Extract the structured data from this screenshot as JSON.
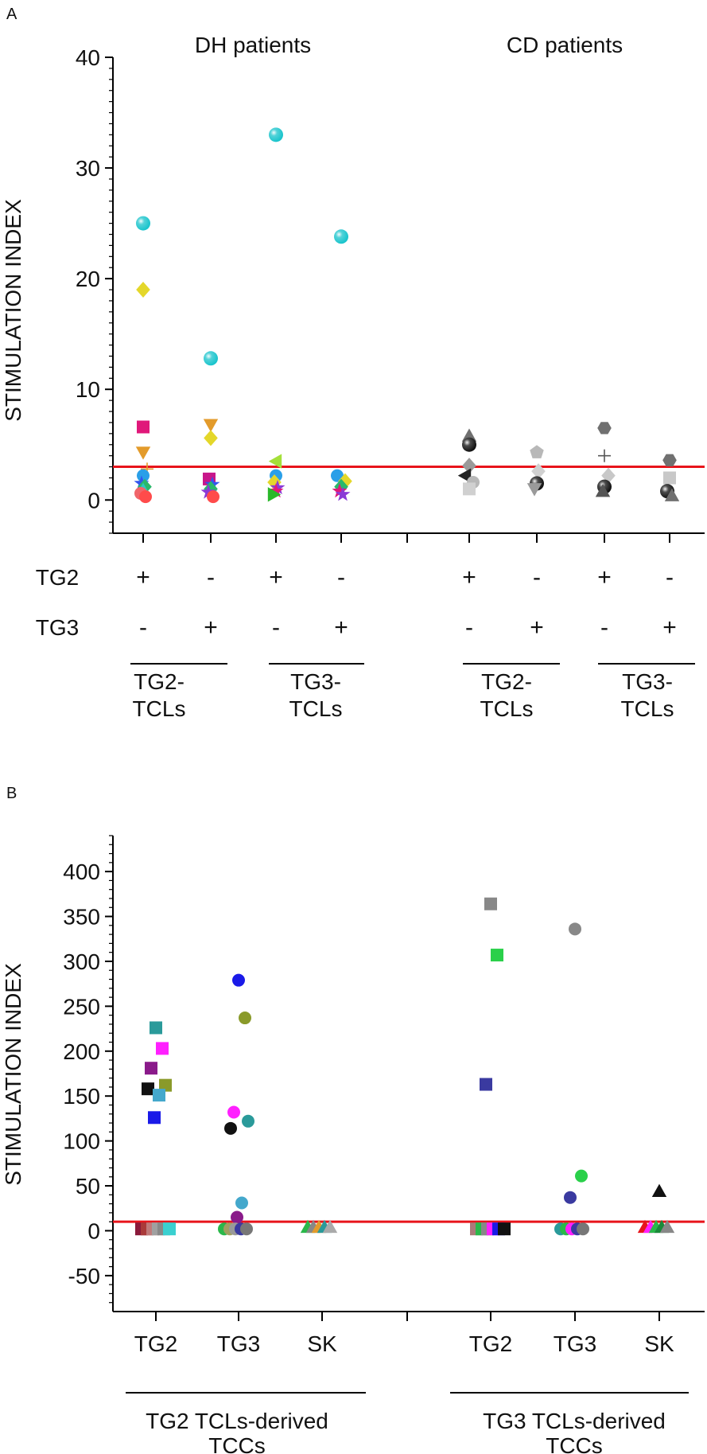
{
  "chart_data": [
    {
      "type": "scatter",
      "panel_label": "A",
      "ylabel": "STIMULATION INDEX",
      "ylim": [
        -3,
        40
      ],
      "yticks": [
        0,
        10,
        20,
        30,
        40
      ],
      "group_titles": [
        "DH patients",
        "CD patients"
      ],
      "conditions": [
        {
          "tg2": "+",
          "tg3": "-"
        },
        {
          "tg2": "-",
          "tg3": "+"
        },
        {
          "tg2": "+",
          "tg3": "-"
        },
        {
          "tg2": "-",
          "tg3": "+"
        },
        {
          "tg2": "+",
          "tg3": "-"
        },
        {
          "tg2": "-",
          "tg3": "+"
        },
        {
          "tg2": "+",
          "tg3": "-"
        },
        {
          "tg2": "-",
          "tg3": "+"
        }
      ],
      "row_labels": {
        "tg2": "TG2",
        "tg3": "TG3"
      },
      "brackets": [
        {
          "line1": "TG2-",
          "line2": "TCLs"
        },
        {
          "line1": "TG3-",
          "line2": "TCLs"
        },
        {
          "line1": "TG2-",
          "line2": "TCLs"
        },
        {
          "line1": "TG3-",
          "line2": "TCLs"
        }
      ],
      "threshold": 3,
      "threshold_color": "#e8141b",
      "points": [
        {
          "x": 1,
          "y": 25,
          "shape": "sphere",
          "color": "#19c4cc"
        },
        {
          "x": 1,
          "y": 19,
          "shape": "diamond",
          "color": "#e4d72a"
        },
        {
          "x": 1,
          "y": 6.6,
          "shape": "square",
          "color": "#e0187a"
        },
        {
          "x": 1,
          "y": 4.3,
          "shape": "tri-down",
          "color": "#e39b2b"
        },
        {
          "x": 1,
          "y": 2.8,
          "shape": "plus",
          "color": "#e39b2b"
        },
        {
          "x": 1,
          "y": 2.2,
          "shape": "circle",
          "color": "#2a9fe8"
        },
        {
          "x": 1,
          "y": 1.5,
          "shape": "star",
          "color": "#3355ee"
        },
        {
          "x": 1,
          "y": 1.2,
          "shape": "diamond",
          "color": "#2ab86a"
        },
        {
          "x": 1,
          "y": 0.9,
          "shape": "tri",
          "color": "#2ec7c0"
        },
        {
          "x": 1,
          "y": 0.6,
          "shape": "circle",
          "color": "#f0656a"
        },
        {
          "x": 1,
          "y": 0.3,
          "shape": "circle",
          "color": "#ff4b4b"
        },
        {
          "x": 2,
          "y": 12.8,
          "shape": "sphere",
          "color": "#19c4cc"
        },
        {
          "x": 2,
          "y": 6.8,
          "shape": "tri-down",
          "color": "#e39b2b"
        },
        {
          "x": 2,
          "y": 5.6,
          "shape": "diamond",
          "color": "#e4d72a"
        },
        {
          "x": 2,
          "y": 1.9,
          "shape": "square",
          "color": "#c8168a"
        },
        {
          "x": 2,
          "y": 1.4,
          "shape": "star",
          "color": "#3355ee"
        },
        {
          "x": 2,
          "y": 1.0,
          "shape": "diamond",
          "color": "#2ab86a"
        },
        {
          "x": 2,
          "y": 0.7,
          "shape": "star",
          "color": "#8a3ad6"
        },
        {
          "x": 2,
          "y": 0.3,
          "shape": "circle",
          "color": "#ff4b4b"
        },
        {
          "x": 3,
          "y": 33,
          "shape": "sphere",
          "color": "#19c4cc"
        },
        {
          "x": 3,
          "y": 3.5,
          "shape": "tri-left",
          "color": "#a4e03a"
        },
        {
          "x": 3,
          "y": 2.2,
          "shape": "circle",
          "color": "#2a9fe8"
        },
        {
          "x": 3,
          "y": 1.6,
          "shape": "diamond",
          "color": "#e4d72a"
        },
        {
          "x": 3,
          "y": 1.1,
          "shape": "star",
          "color": "#8a3ad6"
        },
        {
          "x": 3,
          "y": 0.8,
          "shape": "star",
          "color": "#e0187a"
        },
        {
          "x": 3,
          "y": 0.5,
          "shape": "tri-right",
          "color": "#2ab82a"
        },
        {
          "x": 4,
          "y": 23.8,
          "shape": "sphere",
          "color": "#19c4cc"
        },
        {
          "x": 4,
          "y": 2.2,
          "shape": "circle",
          "color": "#2a9fe8"
        },
        {
          "x": 4,
          "y": 1.7,
          "shape": "diamond",
          "color": "#e4d72a"
        },
        {
          "x": 4,
          "y": 1.2,
          "shape": "diamond",
          "color": "#2ab86a"
        },
        {
          "x": 4,
          "y": 0.8,
          "shape": "star",
          "color": "#e0187a"
        },
        {
          "x": 4,
          "y": 0.5,
          "shape": "star",
          "color": "#8a3ad6"
        },
        {
          "x": 6,
          "y": 5.8,
          "shape": "tri",
          "color": "#707070"
        },
        {
          "x": 6,
          "y": 5.0,
          "shape": "sphere",
          "color": "#111111"
        },
        {
          "x": 6,
          "y": 3.1,
          "shape": "diamond",
          "color": "#9a9a9a"
        },
        {
          "x": 6,
          "y": 2.2,
          "shape": "tri-left",
          "color": "#222222"
        },
        {
          "x": 6,
          "y": 1.6,
          "shape": "circle",
          "color": "#b8b8b8"
        },
        {
          "x": 6,
          "y": 1.0,
          "shape": "square",
          "color": "#d0d0d0"
        },
        {
          "x": 7,
          "y": 4.3,
          "shape": "pentagon",
          "color": "#b8b8b8"
        },
        {
          "x": 7,
          "y": 2.6,
          "shape": "diamond",
          "color": "#d0d0d0"
        },
        {
          "x": 7,
          "y": 1.5,
          "shape": "sphere",
          "color": "#111111"
        },
        {
          "x": 7,
          "y": 1.0,
          "shape": "tri-down",
          "color": "#9a9a9a"
        },
        {
          "x": 8,
          "y": 6.5,
          "shape": "hexagon",
          "color": "#707070"
        },
        {
          "x": 8,
          "y": 4.0,
          "shape": "plus",
          "color": "#555555"
        },
        {
          "x": 8,
          "y": 2.2,
          "shape": "diamond",
          "color": "#c8c8c8"
        },
        {
          "x": 8,
          "y": 1.2,
          "shape": "sphere",
          "color": "#111111"
        },
        {
          "x": 8,
          "y": 0.8,
          "shape": "tri",
          "color": "#555555"
        },
        {
          "x": 9,
          "y": 3.6,
          "shape": "hexagon",
          "color": "#707070"
        },
        {
          "x": 9,
          "y": 2.0,
          "shape": "square",
          "color": "#c8c8c8"
        },
        {
          "x": 9,
          "y": 0.8,
          "shape": "sphere",
          "color": "#111111"
        },
        {
          "x": 9,
          "y": 0.4,
          "shape": "tri",
          "color": "#707070"
        }
      ]
    },
    {
      "type": "scatter",
      "panel_label": "B",
      "ylabel": "STIMULATION INDEX",
      "ylim": [
        -90,
        440
      ],
      "yticks": [
        -50,
        0,
        50,
        100,
        150,
        200,
        250,
        300,
        350,
        400
      ],
      "categories": [
        "TG2",
        "TG3",
        "SK",
        "TG2",
        "TG3",
        "SK"
      ],
      "brackets": [
        {
          "line1": "TG2 TCLs-derived",
          "line2": "TCCs"
        },
        {
          "line1": "TG3 TCLs-derived",
          "line2": "TCCs"
        }
      ],
      "threshold": 10,
      "threshold_color": "#e8141b",
      "points": [
        {
          "x": 1,
          "y": 226,
          "shape": "square",
          "color": "#2a9a9a"
        },
        {
          "x": 1,
          "y": 203,
          "shape": "square",
          "color": "#ff20ff"
        },
        {
          "x": 1,
          "y": 181,
          "shape": "square",
          "color": "#8a1a8a"
        },
        {
          "x": 1,
          "y": 162,
          "shape": "square",
          "color": "#8a9a2a"
        },
        {
          "x": 1,
          "y": 158,
          "shape": "square",
          "color": "#111111"
        },
        {
          "x": 1,
          "y": 151,
          "shape": "square",
          "color": "#44a8cc"
        },
        {
          "x": 1,
          "y": 126,
          "shape": "square",
          "color": "#1a1ae8"
        },
        {
          "x": 1,
          "y": 2,
          "shape": "square",
          "color": "#8a1a3a"
        },
        {
          "x": 1,
          "y": 2,
          "shape": "square",
          "color": "#aa3a3a"
        },
        {
          "x": 1,
          "y": 2,
          "shape": "square",
          "color": "#c07a7a"
        },
        {
          "x": 1,
          "y": 2,
          "shape": "square",
          "color": "#a0a0a0"
        },
        {
          "x": 1,
          "y": 2,
          "shape": "square",
          "color": "#888888"
        },
        {
          "x": 1,
          "y": 2,
          "shape": "square",
          "color": "#3ad0d0"
        },
        {
          "x": 2,
          "y": 279,
          "shape": "circle",
          "color": "#1a1ae8"
        },
        {
          "x": 2,
          "y": 237,
          "shape": "circle",
          "color": "#8a9a2a"
        },
        {
          "x": 2,
          "y": 132,
          "shape": "circle",
          "color": "#ff20ff"
        },
        {
          "x": 2,
          "y": 122,
          "shape": "circle",
          "color": "#2a9a9a"
        },
        {
          "x": 2,
          "y": 114,
          "shape": "circle",
          "color": "#111111"
        },
        {
          "x": 2,
          "y": 31,
          "shape": "circle",
          "color": "#44a8cc"
        },
        {
          "x": 2,
          "y": 15,
          "shape": "circle",
          "color": "#8a1a8a"
        },
        {
          "x": 2,
          "y": 2,
          "shape": "circle",
          "color": "#2ab84a"
        },
        {
          "x": 2,
          "y": 2,
          "shape": "circle",
          "color": "#a0a060"
        },
        {
          "x": 2,
          "y": 2,
          "shape": "circle",
          "color": "#999999"
        },
        {
          "x": 2,
          "y": 2,
          "shape": "circle",
          "color": "#3a3aa0"
        },
        {
          "x": 2,
          "y": 2,
          "shape": "circle",
          "color": "#777777"
        },
        {
          "x": 3,
          "y": 4,
          "shape": "tri",
          "color": "#2ab84a"
        },
        {
          "x": 3,
          "y": 4,
          "shape": "tri",
          "color": "#888888"
        },
        {
          "x": 3,
          "y": 4,
          "shape": "tri",
          "color": "#e39b2b"
        },
        {
          "x": 3,
          "y": 4,
          "shape": "tri",
          "color": "#2a9a9a"
        },
        {
          "x": 3,
          "y": 4,
          "shape": "tri",
          "color": "#aaaaaa"
        },
        {
          "x": 4,
          "y": 364,
          "shape": "square",
          "color": "#888888"
        },
        {
          "x": 4,
          "y": 307,
          "shape": "square",
          "color": "#2ad04a"
        },
        {
          "x": 4,
          "y": 163,
          "shape": "square",
          "color": "#3a3aa0"
        },
        {
          "x": 4,
          "y": 2,
          "shape": "square",
          "color": "#aa7a7a"
        },
        {
          "x": 4,
          "y": 2,
          "shape": "square",
          "color": "#2ab84a"
        },
        {
          "x": 4,
          "y": 2,
          "shape": "square",
          "color": "#888888"
        },
        {
          "x": 4,
          "y": 2,
          "shape": "square",
          "color": "#ff20ff"
        },
        {
          "x": 4,
          "y": 2,
          "shape": "square",
          "color": "#1a1ae8"
        },
        {
          "x": 4,
          "y": 2,
          "shape": "square",
          "color": "#111111"
        },
        {
          "x": 5,
          "y": 336,
          "shape": "circle",
          "color": "#888888"
        },
        {
          "x": 5,
          "y": 61,
          "shape": "circle",
          "color": "#2ad04a"
        },
        {
          "x": 5,
          "y": 37,
          "shape": "circle",
          "color": "#3a3aa0"
        },
        {
          "x": 5,
          "y": 2,
          "shape": "circle",
          "color": "#2a9a9a"
        },
        {
          "x": 5,
          "y": 2,
          "shape": "circle",
          "color": "#2ab84a"
        },
        {
          "x": 5,
          "y": 2,
          "shape": "circle",
          "color": "#ff20ff"
        },
        {
          "x": 5,
          "y": 2,
          "shape": "circle",
          "color": "#3a3aa0"
        },
        {
          "x": 5,
          "y": 2,
          "shape": "circle",
          "color": "#777777"
        },
        {
          "x": 6,
          "y": 44,
          "shape": "tri",
          "color": "#111111"
        },
        {
          "x": 6,
          "y": 4,
          "shape": "tri",
          "color": "#e8141b"
        },
        {
          "x": 6,
          "y": 4,
          "shape": "tri",
          "color": "#ff20ff"
        },
        {
          "x": 6,
          "y": 4,
          "shape": "tri",
          "color": "#2ab84a"
        },
        {
          "x": 6,
          "y": 4,
          "shape": "tri",
          "color": "#1a8a3a"
        },
        {
          "x": 6,
          "y": 4,
          "shape": "tri",
          "color": "#888888"
        }
      ]
    }
  ]
}
